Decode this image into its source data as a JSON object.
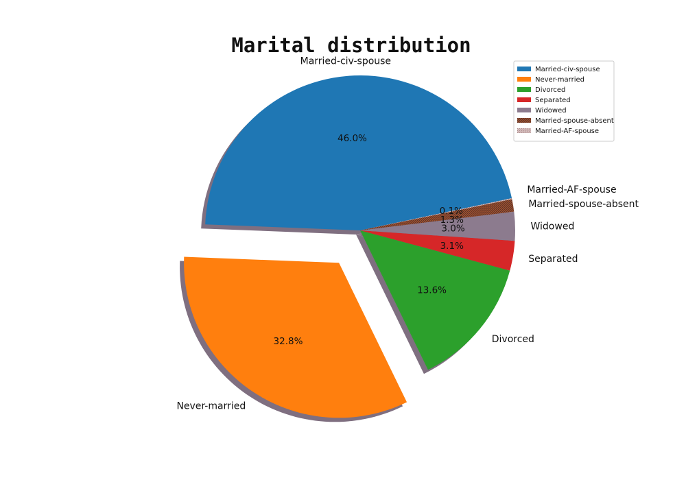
{
  "chart_data": {
    "type": "pie",
    "title": "Marital distribution",
    "legend_position": "top-right",
    "slices": [
      {
        "label": "Married-civ-spouse",
        "value": 46.0,
        "pct_label": "46.0%",
        "color": "#1f77b4",
        "explode": false
      },
      {
        "label": "Never-married",
        "value": 32.8,
        "pct_label": "32.8%",
        "color": "#ff7f0e",
        "explode": true
      },
      {
        "label": "Divorced",
        "value": 13.6,
        "pct_label": "13.6%",
        "color": "#2ca02c",
        "explode": false
      },
      {
        "label": "Separated",
        "value": 3.1,
        "pct_label": "3.1%",
        "color": "#d62728",
        "explode": false
      },
      {
        "label": "Widowed",
        "value": 3.0,
        "pct_label": "3.0%",
        "color": "#8c7b8e",
        "explode": false
      },
      {
        "label": "Married-spouse-absent",
        "value": 1.3,
        "pct_label": "1.3%",
        "color": "#a0522d",
        "explode": false,
        "hatched": true
      },
      {
        "label": "Married-AF-spouse",
        "value": 0.1,
        "pct_label": "0.1%",
        "color": "#c8a2a2",
        "explode": false,
        "hatched": true
      }
    ]
  }
}
